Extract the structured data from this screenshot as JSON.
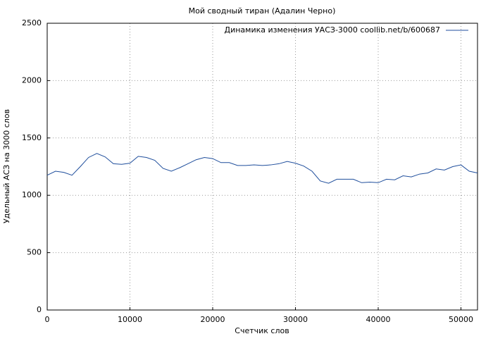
{
  "chart_data": {
    "type": "line",
    "title": "Мой сводный тиран (Адалин Черно)",
    "x_label": "Счетчик слов",
    "y_label": "Удельный АСЗ на 3000 слов",
    "x": [
      0,
      1000,
      2000,
      3000,
      4000,
      5000,
      6000,
      7000,
      8000,
      9000,
      10000,
      11000,
      12000,
      13000,
      14000,
      15000,
      16000,
      17000,
      18000,
      19000,
      20000,
      21000,
      22000,
      23000,
      24000,
      25000,
      26000,
      27000,
      28000,
      29000,
      30000,
      31000,
      32000,
      33000,
      34000,
      35000,
      36000,
      37000,
      38000,
      39000,
      40000,
      41000,
      42000,
      43000,
      44000,
      45000,
      46000,
      47000,
      48000,
      49000,
      50000,
      51000,
      52000
    ],
    "series": [
      {
        "name": "Динамика изменения УАСЗ-3000 coollib.net/b/600687",
        "color": "#1f4e9c",
        "values": [
          1175,
          1210,
          1200,
          1175,
          1250,
          1330,
          1365,
          1335,
          1275,
          1270,
          1280,
          1340,
          1330,
          1305,
          1235,
          1210,
          1240,
          1275,
          1310,
          1330,
          1320,
          1285,
          1285,
          1260,
          1260,
          1265,
          1260,
          1265,
          1275,
          1295,
          1280,
          1255,
          1210,
          1125,
          1105,
          1140,
          1140,
          1140,
          1110,
          1115,
          1110,
          1140,
          1135,
          1170,
          1160,
          1185,
          1195,
          1230,
          1220,
          1250,
          1265,
          1210,
          1195
        ]
      }
    ],
    "xlim": [
      0,
      52000
    ],
    "xticks": [
      0,
      10000,
      20000,
      30000,
      40000,
      50000
    ],
    "ylim": [
      0,
      2500
    ],
    "yticks": [
      0,
      500,
      1000,
      1500,
      2000,
      2500
    ],
    "grid": true,
    "legend": "upper right"
  }
}
